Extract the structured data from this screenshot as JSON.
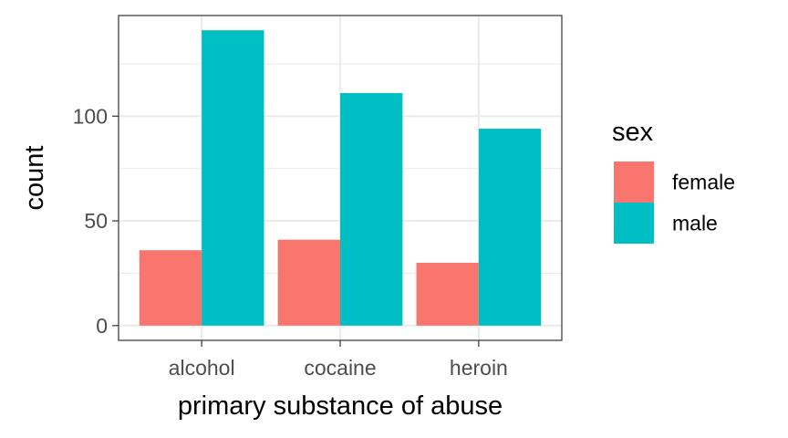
{
  "chart_data": {
    "type": "bar",
    "categories": [
      "alcohol",
      "cocaine",
      "heroin"
    ],
    "series": [
      {
        "name": "female",
        "values": [
          36,
          41,
          30
        ],
        "color": "#F8766D"
      },
      {
        "name": "male",
        "values": [
          141,
          111,
          94
        ],
        "color": "#00BFC4"
      }
    ],
    "xlabel": "primary substance of abuse",
    "ylabel": "count",
    "ylim": [
      -7.05,
      148.05
    ],
    "yticks": [
      0,
      50,
      100
    ],
    "legend": {
      "title": "sex",
      "position": "right"
    },
    "grid": true,
    "theme": "bw"
  }
}
